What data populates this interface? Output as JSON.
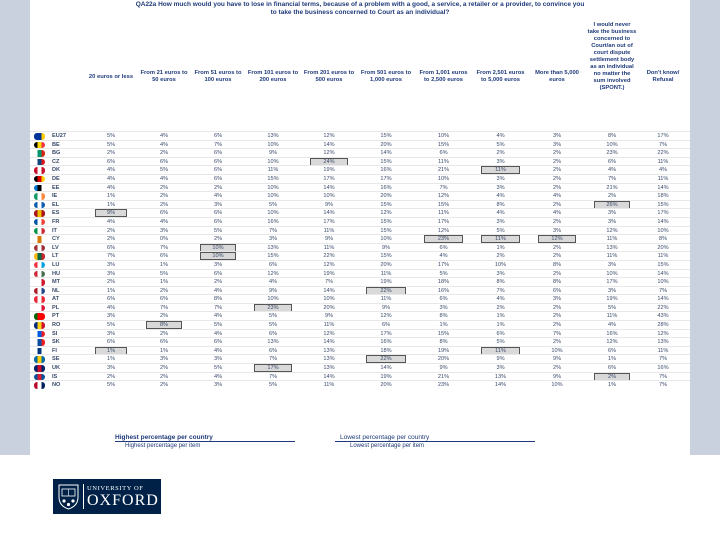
{
  "question": [
    "QA22a How much would you have to lose in financial terms, because of a problem with a good, a service, a retailer or a provider, to convince you",
    "to take the business concerned to Court as an individual?"
  ],
  "columns": [
    "20 euros or less",
    "From 21 euros to 50 euros",
    "From 51 euros to 100 euros",
    "From 101 euros to 200 euros",
    "From 201 euros to 500 euros",
    "From 501 euros to 1,000 euros",
    "From 1,001 euros to 2,500 euros",
    "From 2,501 euros to 5,000 euros",
    "More than 5,000 euros",
    "I would never take the business concerned to Court/an out of court dispute settlement body as an individual no matter the sum involved (SPONT.)",
    "Don't know/ Refusal"
  ],
  "rows": [
    {
      "country": "EU27",
      "flag": [
        "#003399",
        "#003399",
        "#ffcc00"
      ],
      "values": [
        "5%",
        "4%",
        "6%",
        "13%",
        "12%",
        "15%",
        "10%",
        "4%",
        "3%",
        "8%",
        "17%"
      ],
      "hl": []
    },
    {
      "country": "BE",
      "flag": [
        "#000000",
        "#ffd90c",
        "#ef3340"
      ],
      "values": [
        "5%",
        "4%",
        "7%",
        "10%",
        "14%",
        "20%",
        "15%",
        "5%",
        "3%",
        "10%",
        "7%"
      ],
      "hl": []
    },
    {
      "country": "BG",
      "flag": [
        "#ffffff",
        "#00966e",
        "#d62612"
      ],
      "values": [
        "2%",
        "2%",
        "6%",
        "9%",
        "12%",
        "14%",
        "6%",
        "2%",
        "2%",
        "23%",
        "22%"
      ],
      "hl": []
    },
    {
      "country": "CZ",
      "flag": [
        "#ffffff",
        "#11457e",
        "#d7141a"
      ],
      "values": [
        "6%",
        "6%",
        "6%",
        "10%",
        "24%",
        "15%",
        "11%",
        "3%",
        "2%",
        "6%",
        "11%"
      ],
      "hl": [
        4
      ]
    },
    {
      "country": "DK",
      "flag": [
        "#c8102e",
        "#ffffff",
        "#c8102e"
      ],
      "values": [
        "4%",
        "5%",
        "6%",
        "11%",
        "19%",
        "16%",
        "21%",
        "11%",
        "2%",
        "4%",
        "4%"
      ],
      "hl": [
        7
      ]
    },
    {
      "country": "DE",
      "flag": [
        "#000000",
        "#dd0000",
        "#ffce00"
      ],
      "values": [
        "4%",
        "4%",
        "6%",
        "15%",
        "17%",
        "17%",
        "10%",
        "3%",
        "2%",
        "7%",
        "11%"
      ],
      "hl": []
    },
    {
      "country": "EE",
      "flag": [
        "#0072ce",
        "#000000",
        "#ffffff"
      ],
      "values": [
        "4%",
        "2%",
        "2%",
        "10%",
        "14%",
        "16%",
        "7%",
        "3%",
        "2%",
        "21%",
        "14%"
      ],
      "hl": []
    },
    {
      "country": "IE",
      "flag": [
        "#169b62",
        "#ffffff",
        "#ff883e"
      ],
      "values": [
        "1%",
        "2%",
        "4%",
        "10%",
        "10%",
        "20%",
        "12%",
        "4%",
        "4%",
        "2%",
        "18%"
      ],
      "hl": []
    },
    {
      "country": "EL",
      "flag": [
        "#0d5eaf",
        "#ffffff",
        "#0d5eaf"
      ],
      "values": [
        "1%",
        "2%",
        "3%",
        "5%",
        "9%",
        "15%",
        "15%",
        "8%",
        "2%",
        "26%",
        "15%"
      ],
      "hl": [
        9
      ]
    },
    {
      "country": "ES",
      "flag": [
        "#aa151b",
        "#f1bf00",
        "#aa151b"
      ],
      "values": [
        "9%",
        "6%",
        "6%",
        "10%",
        "14%",
        "12%",
        "11%",
        "4%",
        "4%",
        "3%",
        "17%"
      ],
      "hl": [
        0
      ]
    },
    {
      "country": "FR",
      "flag": [
        "#0055a4",
        "#ffffff",
        "#ef4135"
      ],
      "values": [
        "4%",
        "4%",
        "6%",
        "16%",
        "17%",
        "15%",
        "17%",
        "3%",
        "2%",
        "3%",
        "14%"
      ],
      "hl": []
    },
    {
      "country": "IT",
      "flag": [
        "#009246",
        "#ffffff",
        "#ce2b37"
      ],
      "values": [
        "2%",
        "3%",
        "5%",
        "7%",
        "11%",
        "15%",
        "12%",
        "5%",
        "3%",
        "12%",
        "10%"
      ],
      "hl": []
    },
    {
      "country": "CY",
      "flag": [
        "#ffffff",
        "#d57800",
        "#ffffff"
      ],
      "values": [
        "2%",
        "0%",
        "2%",
        "3%",
        "9%",
        "10%",
        "23%",
        "11%",
        "12%",
        "11%",
        "8%"
      ],
      "hl": [
        6,
        7,
        8
      ]
    },
    {
      "country": "LV",
      "flag": [
        "#9e3039",
        "#ffffff",
        "#9e3039"
      ],
      "values": [
        "6%",
        "7%",
        "10%",
        "13%",
        "11%",
        "9%",
        "6%",
        "1%",
        "2%",
        "13%",
        "20%"
      ],
      "hl": [
        2
      ]
    },
    {
      "country": "LT",
      "flag": [
        "#fdb913",
        "#006a44",
        "#c1272d"
      ],
      "values": [
        "7%",
        "6%",
        "10%",
        "15%",
        "22%",
        "15%",
        "4%",
        "2%",
        "2%",
        "11%",
        "11%"
      ],
      "hl": [
        2
      ]
    },
    {
      "country": "LU",
      "flag": [
        "#ef3340",
        "#ffffff",
        "#00a3e0"
      ],
      "values": [
        "3%",
        "1%",
        "3%",
        "6%",
        "12%",
        "20%",
        "17%",
        "10%",
        "8%",
        "3%",
        "15%"
      ],
      "hl": []
    },
    {
      "country": "HU",
      "flag": [
        "#ce2939",
        "#ffffff",
        "#477050"
      ],
      "values": [
        "3%",
        "5%",
        "6%",
        "12%",
        "19%",
        "11%",
        "5%",
        "3%",
        "2%",
        "10%",
        "14%"
      ],
      "hl": []
    },
    {
      "country": "MT",
      "flag": [
        "#ffffff",
        "#ffffff",
        "#cf142b"
      ],
      "values": [
        "2%",
        "1%",
        "2%",
        "4%",
        "7%",
        "19%",
        "18%",
        "8%",
        "8%",
        "17%",
        "10%"
      ],
      "hl": []
    },
    {
      "country": "NL",
      "flag": [
        "#ae1c28",
        "#ffffff",
        "#21468b"
      ],
      "values": [
        "1%",
        "2%",
        "4%",
        "9%",
        "14%",
        "22%",
        "16%",
        "7%",
        "6%",
        "3%",
        "7%"
      ],
      "hl": [
        5
      ]
    },
    {
      "country": "AT",
      "flag": [
        "#ed2939",
        "#ffffff",
        "#ed2939"
      ],
      "values": [
        "6%",
        "6%",
        "8%",
        "10%",
        "10%",
        "11%",
        "6%",
        "4%",
        "3%",
        "19%",
        "14%"
      ],
      "hl": []
    },
    {
      "country": "PL",
      "flag": [
        "#ffffff",
        "#ffffff",
        "#dc143c"
      ],
      "values": [
        "4%",
        "7%",
        "7%",
        "23%",
        "20%",
        "9%",
        "3%",
        "2%",
        "2%",
        "5%",
        "22%"
      ],
      "hl": [
        3
      ]
    },
    {
      "country": "PT",
      "flag": [
        "#006600",
        "#ff0000",
        "#ff0000"
      ],
      "values": [
        "3%",
        "2%",
        "4%",
        "5%",
        "9%",
        "12%",
        "8%",
        "1%",
        "2%",
        "11%",
        "43%"
      ],
      "hl": []
    },
    {
      "country": "RO",
      "flag": [
        "#002b7f",
        "#fcd116",
        "#ce1126"
      ],
      "values": [
        "5%",
        "8%",
        "5%",
        "5%",
        "11%",
        "6%",
        "1%",
        "1%",
        "2%",
        "4%",
        "28%"
      ],
      "hl": [
        1
      ]
    },
    {
      "country": "SI",
      "flag": [
        "#ffffff",
        "#005ce5",
        "#ed1c24"
      ],
      "values": [
        "3%",
        "2%",
        "4%",
        "6%",
        "12%",
        "17%",
        "15%",
        "6%",
        "7%",
        "16%",
        "12%"
      ],
      "hl": []
    },
    {
      "country": "SK",
      "flag": [
        "#ffffff",
        "#0b4ea2",
        "#ee1c25"
      ],
      "values": [
        "6%",
        "6%",
        "6%",
        "13%",
        "14%",
        "16%",
        "8%",
        "5%",
        "2%",
        "12%",
        "13%"
      ],
      "hl": []
    },
    {
      "country": "FI",
      "flag": [
        "#ffffff",
        "#003580",
        "#ffffff"
      ],
      "values": [
        "1%",
        "1%",
        "4%",
        "6%",
        "13%",
        "18%",
        "19%",
        "11%",
        "10%",
        "6%",
        "11%"
      ],
      "hl": [
        0,
        7
      ]
    },
    {
      "country": "SE",
      "flag": [
        "#006aa7",
        "#fecc00",
        "#006aa7"
      ],
      "values": [
        "1%",
        "3%",
        "3%",
        "7%",
        "13%",
        "22%",
        "20%",
        "9%",
        "9%",
        "1%",
        "7%"
      ],
      "hl": [
        5
      ]
    },
    {
      "country": "UK",
      "flag": [
        "#012169",
        "#c8102e",
        "#012169"
      ],
      "values": [
        "3%",
        "2%",
        "5%",
        "17%",
        "13%",
        "14%",
        "9%",
        "3%",
        "2%",
        "6%",
        "16%"
      ],
      "hl": [
        3
      ]
    },
    {
      "country": "IS",
      "flag": [
        "#02529c",
        "#dc1e35",
        "#02529c"
      ],
      "values": [
        "2%",
        "2%",
        "4%",
        "7%",
        "14%",
        "19%",
        "21%",
        "13%",
        "9%",
        "2%",
        "7%"
      ],
      "hl": [
        9
      ]
    },
    {
      "country": "NO",
      "flag": [
        "#ba0c2f",
        "#ffffff",
        "#00205b"
      ],
      "values": [
        "5%",
        "2%",
        "3%",
        "5%",
        "11%",
        "20%",
        "23%",
        "14%",
        "10%",
        "1%",
        "7%"
      ],
      "hl": []
    }
  ],
  "legend": {
    "high_title": "Highest percentage per country",
    "high_sub": "Highest percentage per item",
    "low_title": "Lowest percentage per country",
    "low_sub": "Lowest percentage per item"
  },
  "logo": {
    "small": "UNIVERSITY OF",
    "big": "OXFORD"
  },
  "colors": {
    "band": "#c9d1df",
    "header_text": "#1e3a7a",
    "oxford_blue": "#002147",
    "highlight": "#d9d9d9"
  }
}
